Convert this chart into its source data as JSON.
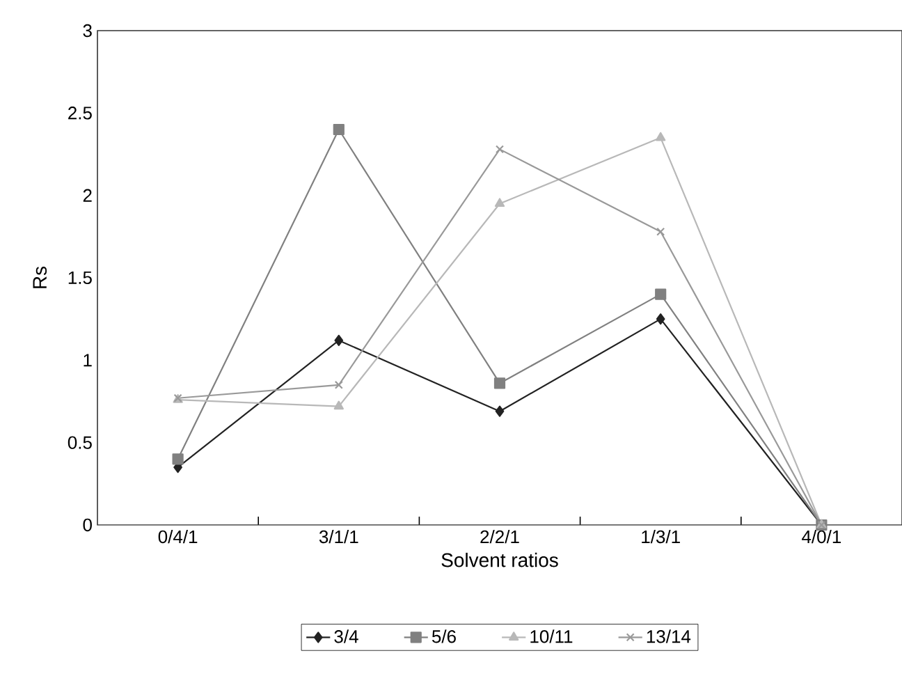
{
  "chart_data": {
    "type": "line",
    "xlabel": "Solvent ratios",
    "ylabel": "Rs",
    "categories": [
      "0/4/1",
      "3/1/1",
      "2/2/1",
      "1/3/1",
      "4/0/1"
    ],
    "ylim": [
      0,
      3
    ],
    "yticks": [
      0,
      {
        "value": 0.5,
        "label": "0.5"
      },
      1,
      {
        "value": 1.5,
        "label": "1.5"
      },
      2,
      {
        "value": 2.5,
        "label": "2.5"
      },
      3
    ],
    "grid": false,
    "legend": "bottom",
    "line_style": "solid",
    "series": [
      {
        "name": "3/4",
        "color": "#222222",
        "marker": "diamond",
        "values": [
          0.35,
          1.12,
          0.69,
          1.25,
          0
        ]
      },
      {
        "name": "5/6",
        "color": "#808080",
        "marker": "square",
        "values": [
          0.4,
          2.4,
          0.86,
          1.4,
          0
        ]
      },
      {
        "name": "10/11",
        "color": "#b8b8b8",
        "marker": "triangle",
        "values": [
          0.76,
          0.72,
          1.95,
          2.35,
          0
        ]
      },
      {
        "name": "13/14",
        "color": "#999999",
        "marker": "cross",
        "values": [
          0.77,
          0.85,
          2.28,
          1.78,
          0
        ]
      }
    ]
  }
}
